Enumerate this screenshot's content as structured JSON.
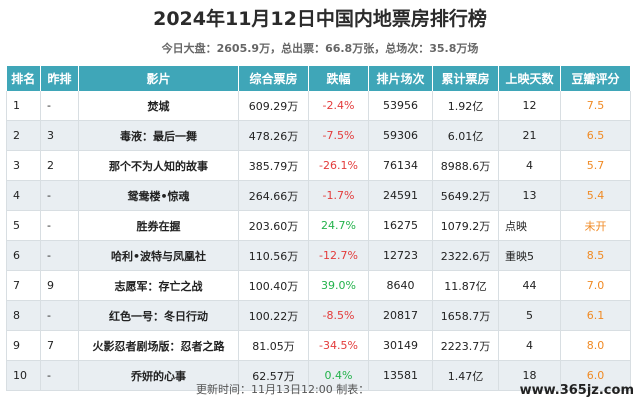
{
  "page": {
    "title": "2024年11月12日中国内地票房排行榜",
    "subtitle": "今日大盘：2605.9万，总出票：66.8万张，总场次：35.8万场",
    "footer": "更新时间：11月13日12:00 制表：",
    "watermark": "www.365jz.com"
  },
  "table": {
    "headers": [
      "排名",
      "昨排",
      "影片",
      "综合票房",
      "跌幅",
      "排片场次",
      "累计票房",
      "上映天数",
      "豆瓣评分"
    ],
    "rows": [
      [
        "1",
        "-",
        "焚城",
        "609.29万",
        "-2.4%",
        "53956",
        "1.92亿",
        "12",
        "7.5"
      ],
      [
        "2",
        "3",
        "毒液：最后一舞",
        "478.26万",
        "-7.5%",
        "59306",
        "6.01亿",
        "21",
        "6.5"
      ],
      [
        "3",
        "2",
        "那个不为人知的故事",
        "385.79万",
        "-26.1%",
        "76134",
        "8988.6万",
        "4",
        "5.7"
      ],
      [
        "4",
        "-",
        "鸳鸯楼•惊魂",
        "264.66万",
        "-1.7%",
        "24591",
        "5649.2万",
        "13",
        "5.4"
      ],
      [
        "5",
        "-",
        "胜券在握",
        "203.60万",
        "24.7%",
        "16275",
        "1079.2万",
        "点映",
        "未开"
      ],
      [
        "6",
        "-",
        "哈利•波特与凤凰社",
        "110.56万",
        "-12.7%",
        "12723",
        "2322.6万",
        "重映5",
        "8.5"
      ],
      [
        "7",
        "9",
        "志愿军：存亡之战",
        "100.40万",
        "39.0%",
        "8640",
        "11.87亿",
        "44",
        "7.0"
      ],
      [
        "8",
        "-",
        "红色一号：冬日行动",
        "100.22万",
        "-8.5%",
        "20817",
        "1658.7万",
        "5",
        "6.1"
      ],
      [
        "9",
        "7",
        "火影忍者剧场版：忍者之路",
        "81.05万",
        "-34.5%",
        "30149",
        "2223.7万",
        "4",
        "8.0"
      ],
      [
        "10",
        "-",
        "乔妍的心事",
        "62.57万",
        "0.4%",
        "13581",
        "1.47亿",
        "18",
        "6.0"
      ]
    ]
  },
  "colors": {
    "header_bg": "#3fa6b8",
    "negative": "#e33b3b",
    "positive": "#23b24b",
    "score": "#f08a24"
  }
}
